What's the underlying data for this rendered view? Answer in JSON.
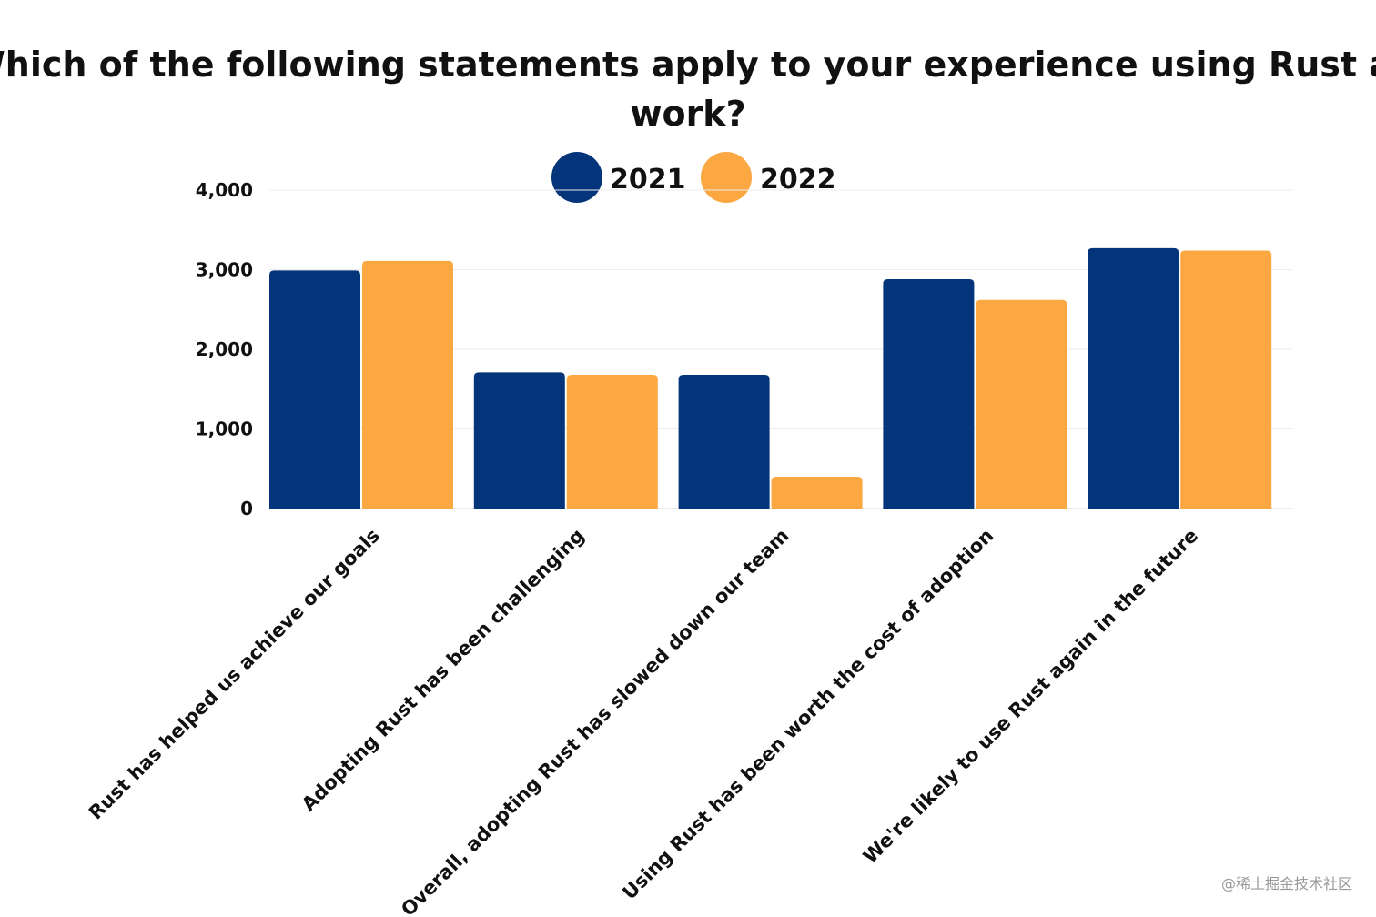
{
  "chart_data": {
    "type": "bar",
    "title_lines": [
      "Which of the following statements apply to your experience using Rust at",
      "work?"
    ],
    "categories": [
      "Rust has helped us achieve our goals",
      "Adopting Rust has been challenging",
      "Overall, adopting Rust has slowed down our team",
      "Using Rust has been worth the cost of adoption",
      "We're likely to use Rust again in the future"
    ],
    "series": [
      {
        "name": "2021",
        "color": "#04357a",
        "values": [
          2990,
          1710,
          1680,
          2880,
          3270
        ]
      },
      {
        "name": "2022",
        "color": "#fba843",
        "values": [
          3110,
          1680,
          400,
          2620,
          3240
        ]
      }
    ],
    "ylim": [
      0,
      4000
    ],
    "yticks": [
      0,
      1000,
      2000,
      3000,
      4000
    ],
    "ytick_labels": [
      "0",
      "1,000",
      "2,000",
      "3,000",
      "4,000"
    ],
    "xlabel": "",
    "ylabel": "",
    "grid": true,
    "legend_position": "top-center"
  },
  "watermark": "@稀土掘金技术社区"
}
